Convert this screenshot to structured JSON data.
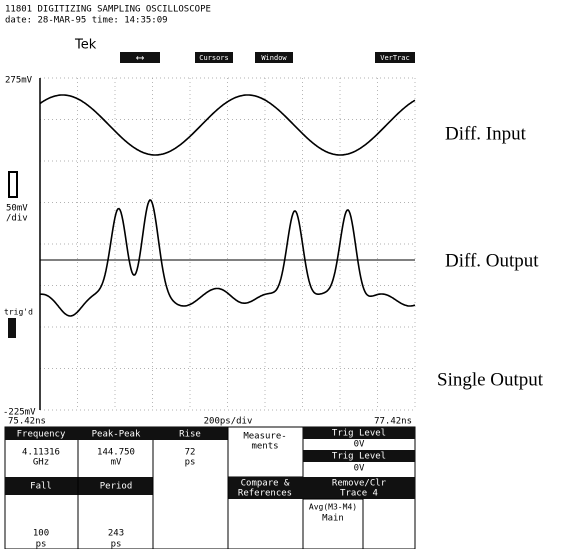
{
  "header": {
    "title": "11801 DIGITIZING SAMPLING OSCILLOSCOPE",
    "datetime": "date: 28-MAR-95 time: 14:35:09",
    "brand": "Tek",
    "buttons": [
      "⟷",
      "Cursors",
      "Window",
      "VerTrac"
    ]
  },
  "display": {
    "top_label": "275mV",
    "scale_label": "50mV",
    "scale_unit": "/div",
    "trig_label": "trig'd",
    "bottom_label": "-225mV",
    "x_start": "75.42ns",
    "x_scale": "200ps/div",
    "x_end": "77.42ns"
  },
  "annotations": [
    "Diff. Input",
    "Diff. Output",
    "Single Output"
  ],
  "menu": {
    "frequency": {
      "label": "Frequency",
      "value": "4.11316",
      "unit": "GHz"
    },
    "peak_peak": {
      "label": "Peak-Peak",
      "value": "144.750",
      "unit": "mV"
    },
    "rise": {
      "label": "Rise",
      "value": "72",
      "unit": "ps"
    },
    "measurements": [
      "Measure-",
      "ments"
    ],
    "trig_level_1": {
      "label": "Trig Level",
      "value": "0V"
    },
    "trig_level_2": {
      "label": "Trig Level",
      "value": "0V"
    },
    "fall": {
      "label": "Fall",
      "value": "100",
      "unit": "ps"
    },
    "period": {
      "label": "Period",
      "value": "243",
      "unit": "ps"
    },
    "compare": [
      "Compare &",
      "References"
    ],
    "remove": [
      "Remove/Clr",
      "Trace 4"
    ],
    "trace": [
      "Avg(M3-M4)",
      "Main"
    ]
  }
}
